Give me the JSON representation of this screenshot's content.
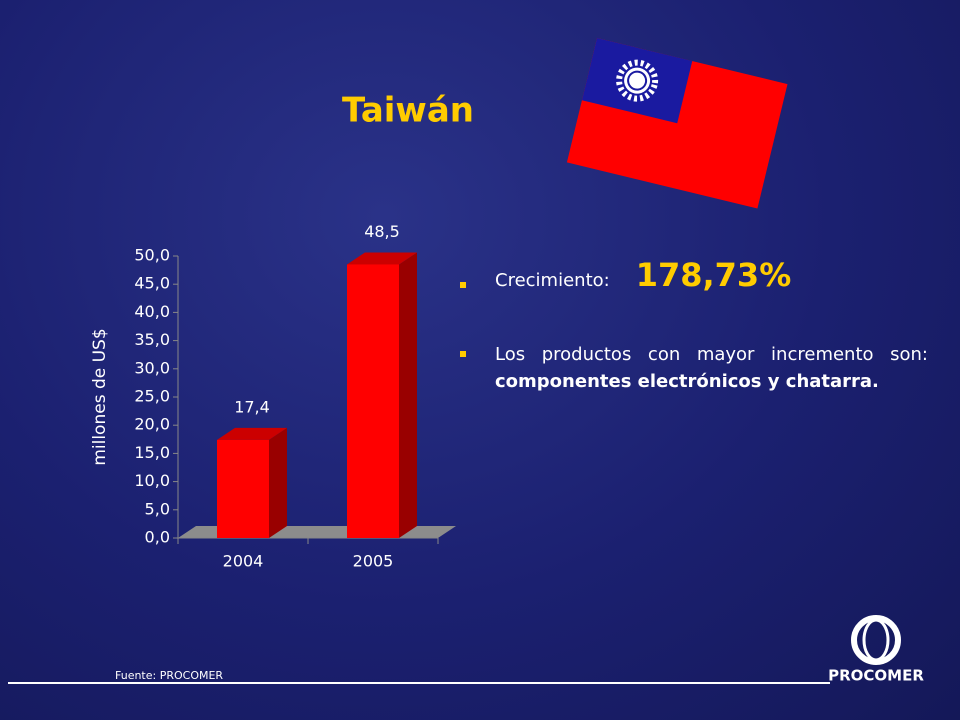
{
  "title": "Taiwán",
  "chart_data": {
    "type": "bar",
    "y_label": "millones de US$",
    "categories": [
      "2004",
      "2005"
    ],
    "values": [
      17.4,
      48.5
    ],
    "value_labels": [
      "17,4",
      "48,5"
    ],
    "color": "#ff0000",
    "ylim": [
      0,
      50
    ],
    "yticks": [
      {
        "value": 0,
        "label": "0,0"
      },
      {
        "value": 5,
        "label": "5,0"
      },
      {
        "value": 10,
        "label": "10,0"
      },
      {
        "value": 15,
        "label": "15,0"
      },
      {
        "value": 20,
        "label": "20,0"
      },
      {
        "value": 25,
        "label": "25,0"
      },
      {
        "value": 30,
        "label": "30,0"
      },
      {
        "value": 35,
        "label": "35,0"
      },
      {
        "value": 40,
        "label": "40,0"
      },
      {
        "value": 45,
        "label": "45,0"
      },
      {
        "value": 50,
        "label": "50,0"
      }
    ]
  },
  "bullets": [
    {
      "text": "Crecimiento:",
      "value": "178,73%"
    },
    {
      "text": "Los productos con mayor incremento son:",
      "bold": "componentes electrónicos y chatarra."
    }
  ],
  "source": "Fuente: PROCOMER",
  "logo": "PROCOMER"
}
